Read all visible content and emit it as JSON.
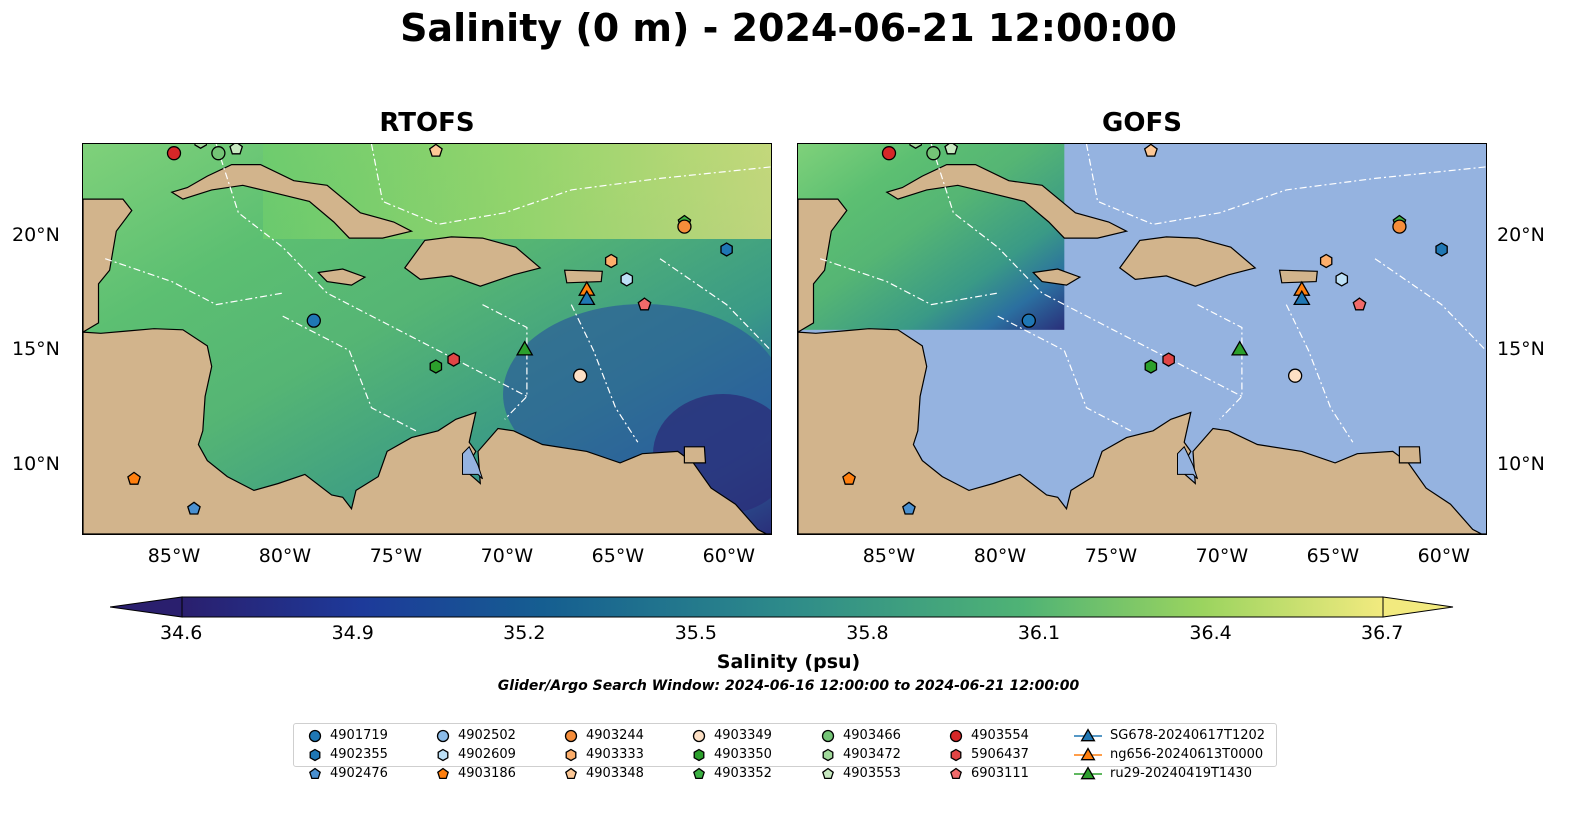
{
  "title": "Salinity (0 m) - 2024-06-21 12:00:00",
  "panels": [
    {
      "name": "rtofs",
      "title": "RTOFS"
    },
    {
      "name": "gofs",
      "title": "GOFS"
    }
  ],
  "map": {
    "lon_range": [
      -89,
      -58
    ],
    "lat_range": [
      7,
      24
    ],
    "x_ticks": [
      "85°W",
      "80°W",
      "75°W",
      "70°W",
      "65°W",
      "60°W"
    ],
    "y_ticks": [
      "20°N",
      "15°N",
      "10°N"
    ],
    "land_color": "#d2b48c",
    "no_data_color": "#95b3e0"
  },
  "colorbar": {
    "colormap": "haline",
    "vmin": 34.6,
    "vmax": 36.7,
    "tick_labels": [
      "34.6",
      "34.9",
      "35.2",
      "35.5",
      "35.8",
      "36.1",
      "36.4",
      "36.7"
    ],
    "label": "Salinity (psu)",
    "extend": "both"
  },
  "search_window": "Glider/Argo Search Window: 2024-06-16 12:00:00 to 2024-06-21 12:00:00",
  "legend": {
    "columns": [
      [
        {
          "label": "4901719",
          "marker": "circle",
          "color": "#1f77b4"
        },
        {
          "label": "4902355",
          "marker": "hexagon",
          "color": "#1f77b4"
        },
        {
          "label": "4902476",
          "marker": "pentagon",
          "color": "#4a90d0"
        }
      ],
      [
        {
          "label": "4902502",
          "marker": "circle",
          "color": "#8bbbe8"
        },
        {
          "label": "4902609",
          "marker": "hexagon",
          "color": "#bde0f6"
        },
        {
          "label": "4903186",
          "marker": "pentagon",
          "color": "#ff7f0e"
        }
      ],
      [
        {
          "label": "4903244",
          "marker": "circle",
          "color": "#f58d3a"
        },
        {
          "label": "4903333",
          "marker": "hexagon",
          "color": "#fdae6b"
        },
        {
          "label": "4903348",
          "marker": "pentagon",
          "color": "#fdc896"
        }
      ],
      [
        {
          "label": "4903349",
          "marker": "circle",
          "color": "#fde0c5"
        },
        {
          "label": "4903350",
          "marker": "hexagon",
          "color": "#2ca02c"
        },
        {
          "label": "4903352",
          "marker": "pentagon",
          "color": "#3cb043"
        }
      ],
      [
        {
          "label": "4903466",
          "marker": "circle",
          "color": "#74c476"
        },
        {
          "label": "4903472",
          "marker": "hexagon",
          "color": "#a1d99b"
        },
        {
          "label": "4903553",
          "marker": "pentagon",
          "color": "#c7e9c0"
        }
      ],
      [
        {
          "label": "4903554",
          "marker": "circle",
          "color": "#d62728"
        },
        {
          "label": "5906437",
          "marker": "hexagon",
          "color": "#e04545"
        },
        {
          "label": "6903111",
          "marker": "pentagon",
          "color": "#f06a6a"
        }
      ],
      [
        {
          "label": "SG678-20240617T1202",
          "marker": "triangle",
          "color": "#1f77b4"
        },
        {
          "label": "ng656-20240613T0000",
          "marker": "triangle",
          "color": "#ff7f0e"
        },
        {
          "label": "ru29-20240419T1430",
          "marker": "triangle",
          "color": "#2ca02c"
        }
      ]
    ]
  },
  "floats": [
    {
      "id": "4903554",
      "lon": -84.9,
      "lat": 23.6,
      "marker": "circle",
      "color": "#d62728"
    },
    {
      "id": "4903466",
      "lon": -82.9,
      "lat": 23.6,
      "marker": "circle",
      "color": "#74c476"
    },
    {
      "id": "4903553",
      "lon": -82.1,
      "lat": 23.8,
      "marker": "pentagon",
      "color": "#c7e9c0"
    },
    {
      "id": "4903472",
      "lon": -83.7,
      "lat": 24.1,
      "marker": "hexagon",
      "color": "#a1d99b"
    },
    {
      "id": "4903348",
      "lon": -73.1,
      "lat": 23.7,
      "marker": "pentagon",
      "color": "#fdc896"
    },
    {
      "id": "4903352",
      "lon": -61.9,
      "lat": 20.6,
      "marker": "pentagon",
      "color": "#3cb043"
    },
    {
      "id": "4903244",
      "lon": -61.9,
      "lat": 20.4,
      "marker": "circle",
      "color": "#f58d3a"
    },
    {
      "id": "4902355",
      "lon": -60.0,
      "lat": 19.4,
      "marker": "hexagon",
      "color": "#1f77b4"
    },
    {
      "id": "4903333",
      "lon": -65.2,
      "lat": 18.9,
      "marker": "hexagon",
      "color": "#fdae6b"
    },
    {
      "id": "4902609",
      "lon": -64.5,
      "lat": 18.1,
      "marker": "hexagon",
      "color": "#bde0f6"
    },
    {
      "id": "6903111",
      "lon": -63.7,
      "lat": 17.0,
      "marker": "pentagon",
      "color": "#f06a6a"
    },
    {
      "id": "4901719",
      "lon": -78.6,
      "lat": 16.3,
      "marker": "circle",
      "color": "#1f77b4"
    },
    {
      "id": "4903350",
      "lon": -73.1,
      "lat": 14.3,
      "marker": "hexagon",
      "color": "#2ca02c"
    },
    {
      "id": "5906437",
      "lon": -72.3,
      "lat": 14.6,
      "marker": "hexagon",
      "color": "#e04545"
    },
    {
      "id": "4903349",
      "lon": -66.6,
      "lat": 13.9,
      "marker": "circle",
      "color": "#fde0c5"
    },
    {
      "id": "4903186",
      "lon": -86.7,
      "lat": 9.4,
      "marker": "pentagon",
      "color": "#ff7f0e"
    },
    {
      "id": "4902476",
      "lon": -84.0,
      "lat": 8.1,
      "marker": "pentagon",
      "color": "#4a90d0"
    }
  ],
  "gliders": [
    {
      "id": "ng656-20240613T0000",
      "lon": -66.3,
      "lat": 17.6,
      "color": "#ff7f0e"
    },
    {
      "id": "SG678-20240617T1202",
      "lon": -66.3,
      "lat": 17.2,
      "color": "#1f77b4"
    },
    {
      "id": "ru29-20240419T1430",
      "lon": -69.1,
      "lat": 15.0,
      "color": "#2ca02c"
    }
  ],
  "land": [
    {
      "name": "cuba",
      "coords": [
        [
          -85.0,
          21.9
        ],
        [
          -84.3,
          22.1
        ],
        [
          -83.4,
          22.6
        ],
        [
          -82.3,
          23.1
        ],
        [
          -81.0,
          23.1
        ],
        [
          -79.5,
          22.4
        ],
        [
          -78.0,
          22.2
        ],
        [
          -76.5,
          21.0
        ],
        [
          -75.0,
          20.6
        ],
        [
          -74.2,
          20.2
        ],
        [
          -75.5,
          19.9
        ],
        [
          -77.0,
          19.9
        ],
        [
          -77.7,
          20.6
        ],
        [
          -78.8,
          21.5
        ],
        [
          -80.5,
          21.9
        ],
        [
          -81.8,
          22.2
        ],
        [
          -83.2,
          22.0
        ],
        [
          -84.5,
          21.6
        ]
      ]
    },
    {
      "name": "jamaica",
      "coords": [
        [
          -78.4,
          18.4
        ],
        [
          -77.3,
          18.55
        ],
        [
          -76.3,
          18.2
        ],
        [
          -76.9,
          17.85
        ],
        [
          -78.0,
          18.0
        ]
      ]
    },
    {
      "name": "hispaniola",
      "coords": [
        [
          -74.5,
          18.6
        ],
        [
          -73.6,
          19.8
        ],
        [
          -72.4,
          19.95
        ],
        [
          -71.0,
          19.9
        ],
        [
          -69.5,
          19.5
        ],
        [
          -68.4,
          18.6
        ],
        [
          -69.6,
          18.3
        ],
        [
          -71.1,
          17.8
        ],
        [
          -72.4,
          18.25
        ],
        [
          -73.8,
          18.1
        ]
      ]
    },
    {
      "name": "puerto-rico",
      "coords": [
        [
          -67.3,
          18.5
        ],
        [
          -65.6,
          18.45
        ],
        [
          -65.65,
          18.0
        ],
        [
          -67.2,
          17.95
        ]
      ]
    },
    {
      "name": "central-america",
      "coords": [
        [
          -89,
          7
        ],
        [
          -89,
          13.6
        ],
        [
          -88.2,
          13.3
        ],
        [
          -87.3,
          13.0
        ],
        [
          -86.2,
          12.2
        ],
        [
          -85.7,
          11.0
        ],
        [
          -85.7,
          10.0
        ],
        [
          -85.0,
          9.6
        ],
        [
          -84.3,
          9.3
        ],
        [
          -83.0,
          8.4
        ],
        [
          -82.2,
          8.6
        ],
        [
          -81.6,
          8.1
        ],
        [
          -80.4,
          7.4
        ],
        [
          -79.6,
          7.0
        ]
      ]
    },
    {
      "name": "honduras",
      "coords": [
        [
          -89,
          15.8
        ],
        [
          -88.2,
          15.75
        ],
        [
          -87.0,
          15.85
        ],
        [
          -85.8,
          15.95
        ],
        [
          -84.5,
          15.9
        ],
        [
          -83.4,
          15.2
        ],
        [
          -83.2,
          14.3
        ],
        [
          -83.5,
          13.0
        ],
        [
          -83.6,
          11.5
        ],
        [
          -83.8,
          10.9
        ],
        [
          -83.4,
          10.2
        ],
        [
          -82.5,
          9.5
        ],
        [
          -81.3,
          8.9
        ],
        [
          -80.2,
          9.2
        ],
        [
          -79.0,
          9.6
        ],
        [
          -77.8,
          8.7
        ],
        [
          -77.3,
          8.6
        ],
        [
          -76.9,
          8.1
        ],
        [
          -76.7,
          8.9
        ],
        [
          -75.7,
          9.5
        ],
        [
          -75.3,
          10.6
        ],
        [
          -74.2,
          11.2
        ],
        [
          -73.0,
          11.5
        ],
        [
          -72.2,
          12.0
        ],
        [
          -71.3,
          12.3
        ],
        [
          -71.6,
          11.0
        ],
        [
          -71.3,
          10.6
        ],
        [
          -71.8,
          9.8
        ],
        [
          -71.1,
          9.2
        ],
        [
          -71.2,
          10.6
        ],
        [
          -70.3,
          11.6
        ],
        [
          -69.6,
          11.5
        ],
        [
          -68.3,
          10.9
        ],
        [
          -66.3,
          10.6
        ],
        [
          -64.8,
          10.1
        ],
        [
          -63.8,
          10.5
        ],
        [
          -62.2,
          10.6
        ],
        [
          -61.5,
          10.1
        ],
        [
          -60.7,
          9.0
        ],
        [
          -59.6,
          8.3
        ],
        [
          -58.6,
          7.2
        ],
        [
          -58.0,
          6.9
        ],
        [
          -58,
          7
        ],
        [
          -89,
          7
        ]
      ]
    },
    {
      "name": "trinidad",
      "coords": [
        [
          -61.9,
          10.8
        ],
        [
          -61.0,
          10.8
        ],
        [
          -60.95,
          10.1
        ],
        [
          -61.9,
          10.1
        ]
      ]
    },
    {
      "name": "florida",
      "coords": [
        [
          -81.9,
          24.2
        ],
        [
          -81.5,
          24.6
        ],
        [
          -80.3,
          25.2
        ],
        [
          -80.0,
          25.2
        ],
        [
          -79.9,
          24.2
        ]
      ]
    },
    {
      "name": "yucatan",
      "coords": [
        [
          -89,
          21.6
        ],
        [
          -87.2,
          21.6
        ],
        [
          -86.8,
          21.1
        ],
        [
          -87.5,
          20.2
        ],
        [
          -87.8,
          18.5
        ],
        [
          -88.3,
          17.9
        ],
        [
          -88.3,
          16.2
        ],
        [
          -89,
          15.8
        ]
      ]
    }
  ],
  "lakes": [
    {
      "name": "maracaibo",
      "coords": [
        [
          -71.9,
          9.6
        ],
        [
          -71.2,
          9.6
        ],
        [
          -71.0,
          9.4
        ],
        [
          -71.2,
          10.0
        ],
        [
          -71.6,
          10.8
        ],
        [
          -71.9,
          10.5
        ]
      ]
    }
  ]
}
